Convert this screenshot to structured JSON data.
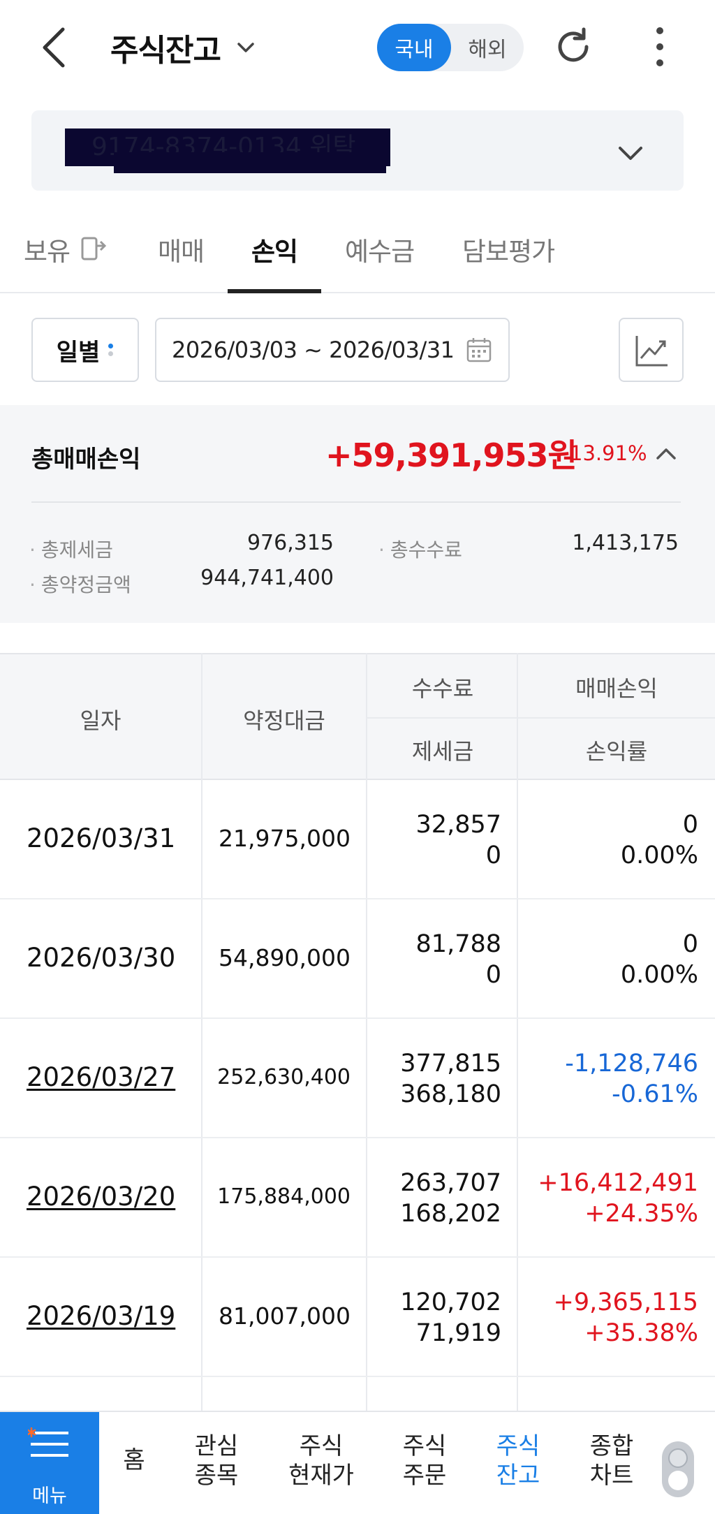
{
  "header": {
    "title": "주식잔고",
    "market_toggle": {
      "selected": "국내",
      "other": "해외"
    },
    "accent_color": "#1a7fe6"
  },
  "account": {
    "number": "9174-8374-0134 위탁"
  },
  "tabs": [
    {
      "label": "보유",
      "active": false
    },
    {
      "label": "매매",
      "active": false
    },
    {
      "label": "손익",
      "active": true
    },
    {
      "label": "예수금",
      "active": false
    },
    {
      "label": "담보평가",
      "active": false
    }
  ],
  "filter": {
    "period": "일별",
    "date_range": "2026/03/03 ~ 2026/03/31"
  },
  "summary": {
    "label": "총매매손익",
    "value": "+59,391,953원",
    "rate": "13.91%",
    "details": {
      "tax_label": "총제세금",
      "tax_value": "976,315",
      "fee_label": "총수수료",
      "fee_value": "1,413,175",
      "amount_label": "총약정금액",
      "amount_value": "944,741,400"
    },
    "positive_color": "#e0141e",
    "negative_color": "#1767d6"
  },
  "table": {
    "headers": {
      "date": "일자",
      "amount": "약정대금",
      "fee": "수수료",
      "tax": "제세금",
      "pl": "매매손익",
      "rate": "손익률"
    },
    "rows": [
      {
        "date": "2026/03/31",
        "amount": "21,975,000",
        "fee": "32,857",
        "tax": "0",
        "pl": "0",
        "rate": "0.00%"
      },
      {
        "date": "2026/03/30",
        "amount": "54,890,000",
        "fee": "81,788",
        "tax": "0",
        "pl": "0",
        "rate": "0.00%"
      },
      {
        "date": "2026/03/27",
        "amount": "252,630,400",
        "fee": "377,815",
        "tax": "368,180",
        "pl": "-1,128,746",
        "rate": "-0.61%"
      },
      {
        "date": "2026/03/20",
        "amount": "175,884,000",
        "fee": "263,707",
        "tax": "168,202",
        "pl": "+16,412,491",
        "rate": "+24.35%"
      },
      {
        "date": "2026/03/19",
        "amount": "81,007,000",
        "fee": "120,702",
        "tax": "71,919",
        "pl": "+9,365,115",
        "rate": "+35.38%"
      }
    ]
  },
  "bottom_nav": {
    "menu": "메뉴",
    "items": [
      {
        "label": "홈",
        "line2": ""
      },
      {
        "label": "관심",
        "line2": "종목"
      },
      {
        "label": "주식",
        "line2": "현재가"
      },
      {
        "label": "주식",
        "line2": "주문"
      },
      {
        "label": "주식",
        "line2": "잔고"
      },
      {
        "label": "종합",
        "line2": "차트"
      }
    ]
  }
}
